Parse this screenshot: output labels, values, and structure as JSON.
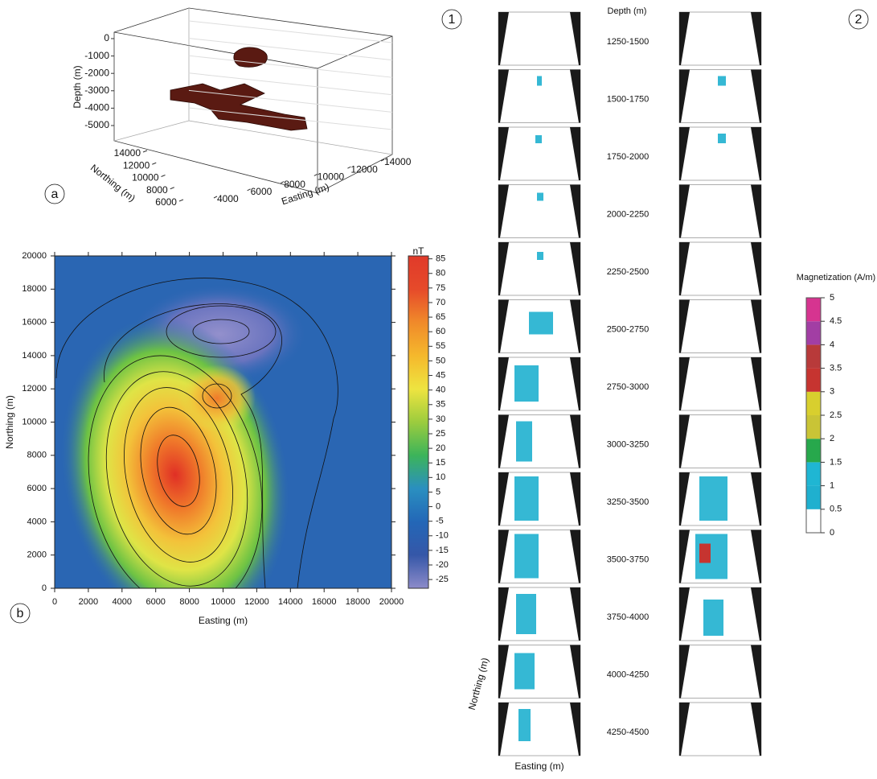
{
  "chart_data": [
    {
      "type": "block3d",
      "panel_label": "a",
      "xlabel": "Easting (m)",
      "ylabel": "Northing (m)",
      "zlabel": "Depth (m)",
      "xlim": [
        3000,
        15000
      ],
      "ylim": [
        5000,
        15000
      ],
      "zlim": [
        -5500,
        300
      ],
      "xticks": [
        4000,
        6000,
        8000,
        10000,
        12000,
        14000
      ],
      "yticks": [
        6000,
        8000,
        10000,
        12000,
        14000
      ],
      "zticks": [
        0,
        -1000,
        -2000,
        -3000,
        -4000,
        -5000
      ],
      "color": "#5a1a12"
    },
    {
      "type": "contour",
      "panel_label": "b",
      "xlabel": "Easting (m)",
      "ylabel": "Northing (m)",
      "xlim": [
        0,
        20000
      ],
      "ylim": [
        0,
        20000
      ],
      "xticks": [
        0,
        2000,
        4000,
        6000,
        8000,
        10000,
        12000,
        14000,
        16000,
        18000,
        20000
      ],
      "yticks": [
        0,
        2000,
        4000,
        6000,
        8000,
        10000,
        12000,
        14000,
        16000,
        18000,
        20000
      ],
      "colorbar_title": "nT",
      "clim": [
        -28,
        86
      ],
      "colorbar_ticks": [
        85,
        80,
        75,
        70,
        65,
        60,
        55,
        50,
        45,
        40,
        35,
        30,
        25,
        20,
        15,
        10,
        5,
        0,
        -5,
        -10,
        -15,
        -20,
        -25
      ],
      "colors": [
        "#8d8bc9",
        "#3557a8",
        "#2367b7",
        "#2a8fc0",
        "#3cb45a",
        "#9ccc3e",
        "#eee440",
        "#f5b82c",
        "#f08a2a",
        "#e64a2a",
        "#e03a2a"
      ]
    },
    {
      "type": "slices",
      "panel_labels": [
        "1",
        "2"
      ],
      "depth_title": "Depth (m)",
      "depths": [
        "1250-1500",
        "1500-1750",
        "1750-2000",
        "2000-2250",
        "2250-2500",
        "2500-2750",
        "2750-3000",
        "3000-3250",
        "3250-3500",
        "3500-3750",
        "3750-4000",
        "4000-4250",
        "4250-4500"
      ],
      "xlabel": "Easting (m)",
      "ylabel": "Northing (m)",
      "colorbar_title": "Magnetization (A/m)",
      "clim": [
        0,
        5
      ],
      "colorbar_ticks": [
        0,
        0.5,
        1,
        1.5,
        2,
        2.5,
        3,
        3.5,
        4,
        4.5,
        5
      ],
      "colors": [
        "#ffffff",
        "#8a90d0",
        "#1fb0cf",
        "#1fb6d3",
        "#27a84c",
        "#c9c436",
        "#d8cf2e",
        "#c63430",
        "#b83a3a",
        "#a23ea4",
        "#d63490"
      ]
    }
  ]
}
